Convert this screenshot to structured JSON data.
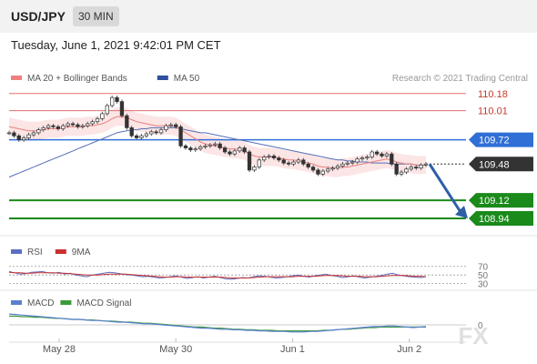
{
  "header": {
    "pair": "USD/JPY",
    "timeframe": "30 MIN"
  },
  "datetime": "Tuesday, June 1, 2021 9:42:01 PM CET",
  "watermark": "FX",
  "chart_data": [
    {
      "type": "line",
      "legend": [
        {
          "label": "MA 20 + Bollinger Bands",
          "color": "#f08080"
        },
        {
          "label": "MA 50",
          "color": "#2f4f9f"
        }
      ],
      "credit": "Research © 2021 Trading Central",
      "ylim": [
        108.85,
        110.25
      ],
      "levels": [
        {
          "value": 110.18,
          "label": "110.18",
          "type": "resistance",
          "color": "#e07070"
        },
        {
          "value": 110.01,
          "label": "110.01",
          "type": "resistance",
          "color": "#e07070"
        },
        {
          "value": 109.72,
          "label": "109.72",
          "type": "pivot",
          "color": "#2f6fd6"
        },
        {
          "value": 109.48,
          "label": "109.48",
          "type": "last",
          "color": "#333333"
        },
        {
          "value": 109.12,
          "label": "109.12",
          "type": "support",
          "color": "#1a8a1a"
        },
        {
          "value": 108.94,
          "label": "108.94",
          "type": "support",
          "color": "#1a8a1a"
        }
      ],
      "price": [
        109.79,
        109.76,
        109.72,
        109.74,
        109.77,
        109.79,
        109.82,
        109.84,
        109.86,
        109.85,
        109.83,
        109.86,
        109.88,
        109.87,
        109.85,
        109.86,
        109.88,
        109.9,
        109.93,
        109.98,
        110.06,
        110.14,
        110.1,
        109.96,
        109.84,
        109.76,
        109.74,
        109.76,
        109.78,
        109.8,
        109.79,
        109.82,
        109.86,
        109.87,
        109.85,
        109.66,
        109.64,
        109.62,
        109.63,
        109.65,
        109.66,
        109.67,
        109.68,
        109.64,
        109.6,
        109.58,
        109.61,
        109.64,
        109.6,
        109.42,
        109.45,
        109.52,
        109.55,
        109.56,
        109.54,
        109.52,
        109.49,
        109.48,
        109.5,
        109.52,
        109.48,
        109.45,
        109.42,
        109.38,
        109.41,
        109.43,
        109.44,
        109.46,
        109.48,
        109.49,
        109.5,
        109.53,
        109.54,
        109.55,
        109.6,
        109.58,
        109.56,
        109.58,
        109.48,
        109.38,
        109.4,
        109.43,
        109.45,
        109.44,
        109.47,
        109.48
      ],
      "ma20": [
        109.85,
        109.84,
        109.83,
        109.82,
        109.81,
        109.81,
        109.81,
        109.82,
        109.83,
        109.83,
        109.83,
        109.84,
        109.85,
        109.85,
        109.85,
        109.85,
        109.86,
        109.86,
        109.87,
        109.88,
        109.9,
        109.93,
        109.95,
        109.95,
        109.94,
        109.92,
        109.9,
        109.89,
        109.88,
        109.87,
        109.86,
        109.86,
        109.86,
        109.86,
        109.85,
        109.82,
        109.79,
        109.76,
        109.73,
        109.7,
        109.68,
        109.67,
        109.66,
        109.65,
        109.64,
        109.63,
        109.63,
        109.62,
        109.61,
        109.58,
        109.56,
        109.55,
        109.55,
        109.55,
        109.55,
        109.54,
        109.53,
        109.52,
        109.52,
        109.51,
        109.5,
        109.49,
        109.48,
        109.46,
        109.45,
        109.45,
        109.44,
        109.44,
        109.45,
        109.45,
        109.46,
        109.47,
        109.48,
        109.49,
        109.5,
        109.51,
        109.52,
        109.53,
        109.52,
        109.5,
        109.49,
        109.48,
        109.48,
        109.47,
        109.47,
        109.47
      ],
      "ma50": [
        109.35,
        109.37,
        109.39,
        109.41,
        109.43,
        109.45,
        109.47,
        109.49,
        109.51,
        109.53,
        109.55,
        109.57,
        109.59,
        109.61,
        109.63,
        109.65,
        109.67,
        109.69,
        109.71,
        109.73,
        109.75,
        109.77,
        109.79,
        109.8,
        109.81,
        109.82,
        109.82,
        109.83,
        109.83,
        109.84,
        109.84,
        109.84,
        109.84,
        109.84,
        109.84,
        109.83,
        109.82,
        109.81,
        109.8,
        109.79,
        109.79,
        109.78,
        109.77,
        109.76,
        109.75,
        109.74,
        109.73,
        109.72,
        109.71,
        109.7,
        109.69,
        109.68,
        109.67,
        109.66,
        109.65,
        109.64,
        109.63,
        109.62,
        109.61,
        109.6,
        109.59,
        109.58,
        109.57,
        109.56,
        109.55,
        109.54,
        109.53,
        109.52,
        109.52,
        109.51,
        109.51,
        109.5,
        109.5,
        109.5,
        109.49,
        109.49,
        109.49,
        109.49,
        109.48,
        109.48,
        109.48,
        109.48,
        109.48,
        109.47,
        109.47,
        109.47
      ],
      "forecast": {
        "from": 109.48,
        "to": 108.94
      }
    },
    {
      "type": "line",
      "legend": [
        {
          "label": "RSI",
          "color": "#5b6fc0"
        },
        {
          "label": "9MA",
          "color": "#c83030"
        }
      ],
      "ylim": [
        25,
        80
      ],
      "levels": [
        {
          "value": 70,
          "label": "70"
        },
        {
          "value": 50,
          "label": "50"
        },
        {
          "value": 30,
          "label": "30"
        }
      ],
      "rsi": [
        58,
        55,
        52,
        53,
        56,
        57,
        58,
        55,
        54,
        56,
        52,
        54,
        50,
        48,
        46,
        50,
        52,
        54,
        56,
        55,
        53,
        51,
        50,
        48,
        46,
        47,
        45,
        43,
        44,
        46,
        48,
        45,
        42,
        44,
        46,
        43,
        45,
        47,
        44,
        41,
        40,
        42,
        44,
        43,
        46,
        48,
        47,
        45,
        43,
        44,
        46,
        48,
        50,
        47,
        45,
        48,
        50,
        52,
        49,
        47,
        44,
        46,
        48,
        45,
        43,
        45,
        47,
        49,
        52,
        54,
        50,
        48,
        46,
        45,
        44,
        46
      ],
      "ma9": [
        56,
        55,
        55,
        54,
        54,
        55,
        55,
        55,
        55,
        54,
        54,
        53,
        52,
        51,
        50,
        50,
        50,
        51,
        52,
        52,
        52,
        52,
        51,
        50,
        49,
        48,
        47,
        46,
        45,
        45,
        46,
        46,
        45,
        45,
        45,
        45,
        45,
        45,
        45,
        44,
        43,
        43,
        43,
        43,
        44,
        45,
        46,
        46,
        46,
        46,
        46,
        46,
        47,
        47,
        47,
        47,
        48,
        49,
        49,
        49,
        48,
        47,
        47,
        47,
        46,
        46,
        46,
        47,
        48,
        49,
        49,
        49,
        48,
        47,
        47,
        46
      ]
    },
    {
      "type": "line",
      "legend": [
        {
          "label": "MACD",
          "color": "#5b7fd0"
        },
        {
          "label": "MACD Signal",
          "color": "#3a9a3a"
        }
      ],
      "ylim": [
        -0.25,
        0.25
      ],
      "levels": [
        {
          "value": 0,
          "label": "0"
        }
      ],
      "macd": [
        0.2,
        0.19,
        0.18,
        0.17,
        0.16,
        0.15,
        0.14,
        0.13,
        0.12,
        0.11,
        0.1,
        0.1,
        0.09,
        0.08,
        0.08,
        0.07,
        0.06,
        0.05,
        0.05,
        0.04,
        0.03,
        0.02,
        0.02,
        0.01,
        0.0,
        -0.01,
        -0.02,
        -0.03,
        -0.04,
        -0.05,
        -0.06,
        -0.06,
        -0.07,
        -0.08,
        -0.08,
        -0.09,
        -0.09,
        -0.1,
        -0.1,
        -0.11,
        -0.11,
        -0.12,
        -0.12,
        -0.12,
        -0.13,
        -0.13,
        -0.13,
        -0.12,
        -0.12,
        -0.11,
        -0.1,
        -0.09,
        -0.08,
        -0.07,
        -0.06,
        -0.05,
        -0.04,
        -0.03,
        -0.03,
        -0.02,
        -0.02,
        -0.03,
        -0.04,
        -0.05,
        -0.04,
        -0.03
      ],
      "signal": [
        0.16,
        0.16,
        0.15,
        0.15,
        0.14,
        0.14,
        0.13,
        0.12,
        0.12,
        0.11,
        0.1,
        0.1,
        0.09,
        0.09,
        0.08,
        0.07,
        0.07,
        0.06,
        0.05,
        0.05,
        0.04,
        0.03,
        0.03,
        0.02,
        0.01,
        0.0,
        -0.01,
        -0.02,
        -0.03,
        -0.04,
        -0.04,
        -0.05,
        -0.06,
        -0.06,
        -0.07,
        -0.08,
        -0.08,
        -0.09,
        -0.09,
        -0.1,
        -0.1,
        -0.1,
        -0.11,
        -0.11,
        -0.11,
        -0.11,
        -0.11,
        -0.11,
        -0.11,
        -0.1,
        -0.1,
        -0.09,
        -0.08,
        -0.08,
        -0.07,
        -0.06,
        -0.05,
        -0.05,
        -0.04,
        -0.04,
        -0.04,
        -0.04,
        -0.04,
        -0.04,
        -0.04,
        -0.04
      ]
    }
  ],
  "xaxis": {
    "labels": [
      "May 28",
      "May 30",
      "Jun 1",
      "Jun 2"
    ],
    "positions": [
      0.12,
      0.4,
      0.68,
      0.96
    ]
  }
}
